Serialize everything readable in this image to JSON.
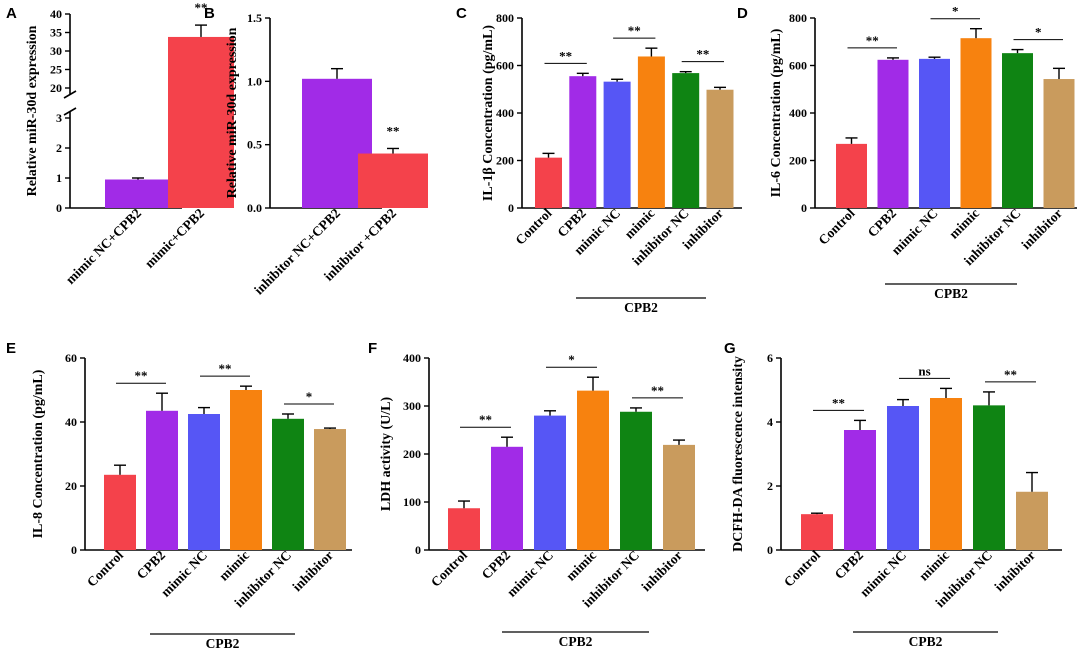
{
  "figure": {
    "group_label": "CPB2"
  },
  "colors": {
    "control": "#f4424b",
    "cpb2": "#a12be7",
    "mimic_nc": "#5656f5",
    "mimic": "#f7820f",
    "inhibitor_nc": "#0f8413",
    "inhibitor": "#c99b5d",
    "mimic_nc_cpb2": "#a12be7",
    "mimic_cpb2": "#f4424b",
    "inhibitor_nc_cpb2": "#a12be7",
    "inhibitor_cpb2": "#f4424b"
  },
  "chart_data": [
    {
      "panel": "A",
      "type": "bar",
      "ylabel": "Relative miR-30d expression",
      "categories": [
        "mimic NC+CPB2",
        "mimic+CPB2"
      ],
      "color_keys": [
        "mimic_nc_cpb2",
        "mimic_cpb2"
      ],
      "values": [
        0.95,
        33.8
      ],
      "errors": [
        0.05,
        3.2
      ],
      "axis_break": {
        "lower": [
          0,
          3
        ],
        "upper": [
          20,
          40
        ]
      },
      "lower_ticks": [
        0,
        1,
        2,
        3
      ],
      "upper_ticks": [
        20,
        25,
        30,
        35,
        40
      ],
      "comparisons": [
        {
          "from": 1,
          "to": 1,
          "label": "**"
        }
      ]
    },
    {
      "panel": "B",
      "type": "bar",
      "ylabel": "Relative miR-30d expression",
      "categories": [
        "inhibitor NC+CPB2",
        "inhibitor +CPB2"
      ],
      "color_keys": [
        "inhibitor_nc_cpb2",
        "inhibitor_cpb2"
      ],
      "values": [
        1.02,
        0.43
      ],
      "errors": [
        0.08,
        0.04
      ],
      "ylim": [
        0,
        1.5
      ],
      "ticks": [
        0.0,
        0.5,
        1.0,
        1.5
      ],
      "tick_labels": [
        "0.0",
        "0.5",
        "1.0",
        "1.5"
      ],
      "comparisons": [
        {
          "from": 1,
          "to": 1,
          "label": "**"
        }
      ]
    },
    {
      "panel": "C",
      "type": "bar",
      "ylabel": "IL-1β Concentration (pg/mL)",
      "categories": [
        "Control",
        "CPB2",
        "mimic NC",
        "mimic",
        "inhibitor NC",
        "inhibitor"
      ],
      "color_keys": [
        "control",
        "cpb2",
        "mimic_nc",
        "mimic",
        "inhibitor_nc",
        "inhibitor"
      ],
      "values": [
        212,
        555,
        532,
        638,
        568,
        498
      ],
      "errors": [
        18,
        12,
        10,
        35,
        6,
        10
      ],
      "ylim": [
        0,
        800
      ],
      "ticks": [
        0,
        200,
        400,
        600,
        800
      ],
      "tick_labels": [
        "0",
        "200",
        "400",
        "600",
        "800"
      ],
      "comparisons": [
        {
          "from": 0,
          "to": 1,
          "label": "**"
        },
        {
          "from": 2,
          "to": 3,
          "label": "**"
        },
        {
          "from": 4,
          "to": 5,
          "label": "**"
        }
      ]
    },
    {
      "panel": "D",
      "type": "bar",
      "ylabel": "IL-6 Concentration (pg/mL)",
      "categories": [
        "Control",
        "CPB2",
        "mimic NC",
        "mimic",
        "inhibitor NC",
        "inhibitor"
      ],
      "color_keys": [
        "control",
        "cpb2",
        "mimic_nc",
        "mimic",
        "inhibitor_nc",
        "inhibitor"
      ],
      "values": [
        270,
        624,
        628,
        715,
        652,
        543
      ],
      "errors": [
        25,
        8,
        7,
        40,
        15,
        45
      ],
      "ylim": [
        0,
        800
      ],
      "ticks": [
        0,
        200,
        400,
        600,
        800
      ],
      "tick_labels": [
        "0",
        "200",
        "400",
        "600",
        "800"
      ],
      "comparisons": [
        {
          "from": 0,
          "to": 1,
          "label": "**"
        },
        {
          "from": 2,
          "to": 3,
          "label": "*"
        },
        {
          "from": 4,
          "to": 5,
          "label": "*"
        }
      ]
    },
    {
      "panel": "E",
      "type": "bar",
      "ylabel": "IL-8 Concentration (pg/mL)",
      "categories": [
        "Control",
        "CPB2",
        "mimic NC",
        "mimic",
        "inhibitor NC",
        "inhibitor"
      ],
      "color_keys": [
        "control",
        "cpb2",
        "mimic_nc",
        "mimic",
        "inhibitor_nc",
        "inhibitor"
      ],
      "values": [
        23.5,
        43.5,
        42.5,
        50,
        41,
        37.8
      ],
      "errors": [
        3,
        5.5,
        2,
        1.2,
        1.5,
        0.3
      ],
      "ylim": [
        0,
        60
      ],
      "ticks": [
        0,
        20,
        40,
        60
      ],
      "tick_labels": [
        "0",
        "20",
        "40",
        "60"
      ],
      "comparisons": [
        {
          "from": 0,
          "to": 1,
          "label": "**"
        },
        {
          "from": 2,
          "to": 3,
          "label": "**"
        },
        {
          "from": 4,
          "to": 5,
          "label": "*"
        }
      ]
    },
    {
      "panel": "F",
      "type": "bar",
      "ylabel": "LDH activity (U/L)",
      "categories": [
        "Control",
        "CPB2",
        "mimic NC",
        "mimic",
        "inhibitor NC",
        "inhibitor"
      ],
      "color_keys": [
        "control",
        "cpb2",
        "mimic_nc",
        "mimic",
        "inhibitor_nc",
        "inhibitor"
      ],
      "values": [
        87,
        215,
        280,
        332,
        288,
        219
      ],
      "errors": [
        15,
        20,
        10,
        28,
        8,
        10
      ],
      "ylim": [
        0,
        400
      ],
      "ticks": [
        0,
        100,
        200,
        300,
        400
      ],
      "tick_labels": [
        "0",
        "100",
        "200",
        "300",
        "400"
      ],
      "comparisons": [
        {
          "from": 0,
          "to": 1,
          "label": "**"
        },
        {
          "from": 2,
          "to": 3,
          "label": "*"
        },
        {
          "from": 4,
          "to": 5,
          "label": "**"
        }
      ]
    },
    {
      "panel": "G",
      "type": "bar",
      "ylabel": "DCFH-DA fluorescence intensity",
      "categories": [
        "Control",
        "CPB2",
        "mimic NC",
        "mimic",
        "inhibitor NC",
        "inhibitor"
      ],
      "color_keys": [
        "control",
        "cpb2",
        "mimic_nc",
        "mimic",
        "inhibitor_nc",
        "inhibitor"
      ],
      "values": [
        1.12,
        3.75,
        4.5,
        4.75,
        4.52,
        1.82
      ],
      "errors": [
        0.03,
        0.3,
        0.2,
        0.3,
        0.42,
        0.6
      ],
      "ylim": [
        0,
        6
      ],
      "ticks": [
        0,
        2,
        4,
        6
      ],
      "tick_labels": [
        "0",
        "2",
        "4",
        "6"
      ],
      "comparisons": [
        {
          "from": 0,
          "to": 1,
          "label": "**"
        },
        {
          "from": 2,
          "to": 3,
          "label": "ns"
        },
        {
          "from": 4,
          "to": 5,
          "label": "**"
        }
      ]
    }
  ]
}
